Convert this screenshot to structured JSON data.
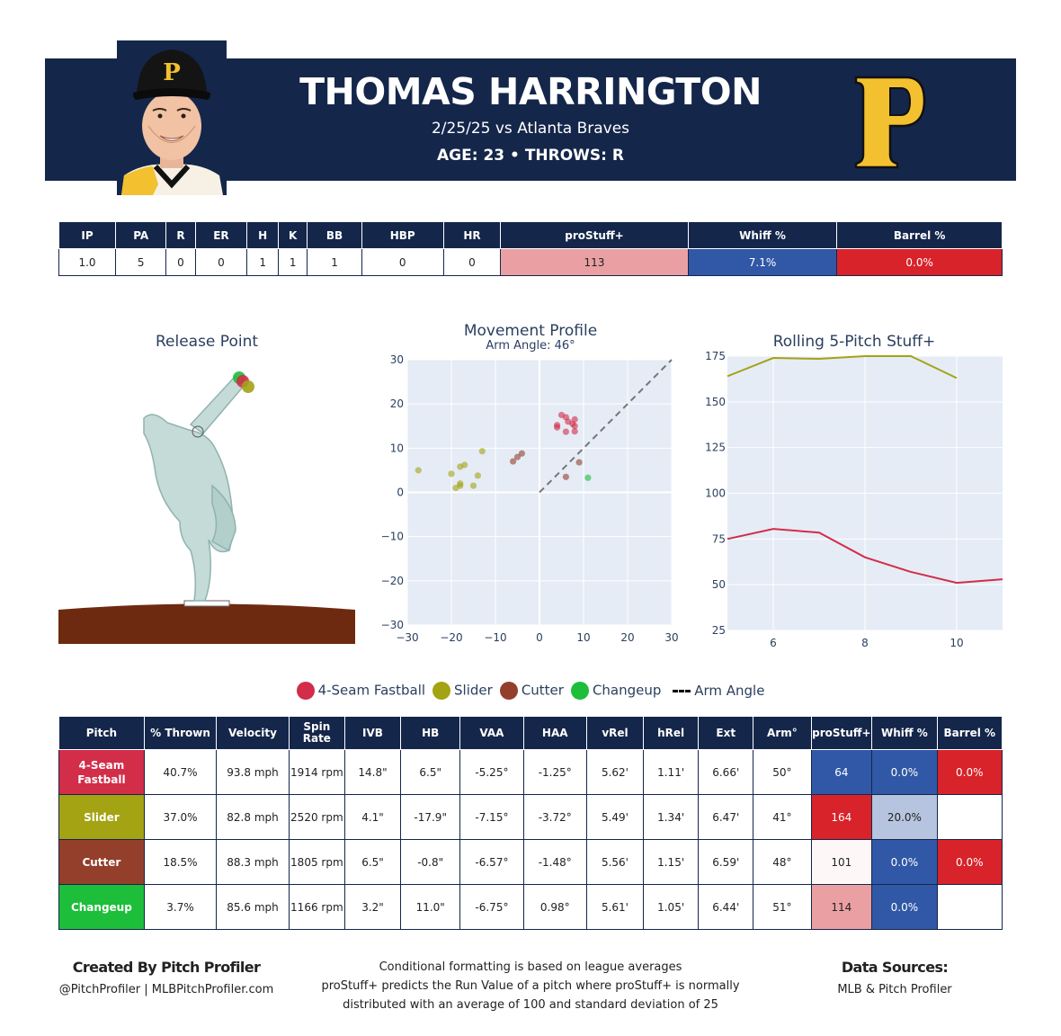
{
  "header": {
    "name": "THOMAS HARRINGTON",
    "game": "2/25/25 vs Atlanta Braves",
    "bio": "AGE: 23 • THROWS: R"
  },
  "colors": {
    "navy": "#14264a",
    "fourseam": "#d22d49",
    "slider": "#a3a313",
    "cutter": "#933f2c",
    "changeup": "#1dbe3a",
    "good_red": "#d8232a",
    "bad_blue": "#3158a6",
    "pink": "#eaa0a3",
    "light_blue": "#b7c4df",
    "near_white": "#fdf7f8"
  },
  "stat_table": {
    "headers": [
      "IP",
      "PA",
      "R",
      "ER",
      "H",
      "K",
      "BB",
      "HBP",
      "HR",
      "proStuff+",
      "Whiff %",
      "Barrel %"
    ],
    "values": [
      "1.0",
      "5",
      "0",
      "0",
      "1",
      "1",
      "1",
      "0",
      "0",
      "113",
      "7.1%",
      "0.0%"
    ],
    "cell_colors": [
      "",
      "",
      "",
      "",
      "",
      "",
      "",
      "",
      "",
      "#eaa0a3",
      "#3158a6",
      "#d8232a"
    ]
  },
  "titles": {
    "release": "Release Point",
    "movement": "Movement Profile",
    "movement_sub": "Arm Angle: 46°",
    "rolling": "Rolling 5-Pitch Stuff+"
  },
  "chart_data": [
    {
      "type": "scatter",
      "title": "Movement Profile",
      "subtitle": "Arm Angle: 46°",
      "xlim": [
        -30,
        30
      ],
      "ylim": [
        -30,
        30
      ],
      "xticks": [
        -30,
        -20,
        -10,
        0,
        10,
        20,
        30
      ],
      "yticks": [
        -30,
        -20,
        -10,
        0,
        10,
        20,
        30
      ],
      "series": [
        {
          "name": "4-Seam Fastball",
          "color": "#d22d49",
          "points": [
            [
              5,
              17.5
            ],
            [
              6,
              17
            ],
            [
              6.5,
              16
            ],
            [
              7.5,
              15.5
            ],
            [
              8,
              16.5
            ],
            [
              8,
              15
            ],
            [
              4,
              15.2
            ],
            [
              6,
              13.7
            ],
            [
              8,
              13.8
            ],
            [
              4,
              14.7
            ]
          ]
        },
        {
          "name": "Slider",
          "color": "#a3a313",
          "points": [
            [
              -27.5,
              5
            ],
            [
              -13,
              9.3
            ],
            [
              -18,
              5.8
            ],
            [
              -17,
              6.2
            ],
            [
              -20,
              4.2
            ],
            [
              -14,
              3.8
            ],
            [
              -18,
              2
            ],
            [
              -19,
              1
            ],
            [
              -18,
              1.5
            ],
            [
              -15,
              1.5
            ]
          ]
        },
        {
          "name": "Cutter",
          "color": "#933f2c",
          "points": [
            [
              -6,
              7
            ],
            [
              -5,
              8
            ],
            [
              -4,
              8.8
            ],
            [
              9,
              6.8
            ],
            [
              6,
              3.5
            ]
          ]
        },
        {
          "name": "Changeup",
          "color": "#1dbe3a",
          "points": [
            [
              11,
              3.3
            ]
          ]
        }
      ],
      "arm_angle_line": [
        [
          0,
          0
        ],
        [
          30,
          30
        ]
      ]
    },
    {
      "type": "line",
      "title": "Rolling 5-Pitch Stuff+",
      "xlim": [
        5,
        11
      ],
      "ylim": [
        25,
        175
      ],
      "xticks": [
        6,
        8,
        10
      ],
      "yticks": [
        25,
        50,
        75,
        100,
        125,
        150,
        175
      ],
      "series": [
        {
          "name": "4-Seam Fastball",
          "color": "#d22d49",
          "x": [
            5,
            6,
            7,
            8,
            9,
            10,
            11
          ],
          "y": [
            75,
            80.5,
            78.5,
            65,
            57,
            51,
            53
          ]
        },
        {
          "name": "Slider",
          "color": "#a3a313",
          "x": [
            5,
            6,
            7,
            8,
            9,
            10
          ],
          "y": [
            164,
            174,
            173.5,
            175,
            175,
            163
          ]
        }
      ]
    }
  ],
  "release_points": [
    {
      "color": "#1dbe3a",
      "x": 266,
      "y": 420
    },
    {
      "color": "#d22d49",
      "x": 270,
      "y": 424
    },
    {
      "color": "#a3a313",
      "x": 276,
      "y": 430
    }
  ],
  "legend": {
    "items": [
      {
        "label": "4-Seam Fastball",
        "color": "#d22d49"
      },
      {
        "label": "Slider",
        "color": "#a3a313"
      },
      {
        "label": "Cutter",
        "color": "#933f2c"
      },
      {
        "label": "Changeup",
        "color": "#1dbe3a"
      }
    ],
    "arm_angle_label": "Arm Angle"
  },
  "pitch_table": {
    "headers": [
      "Pitch",
      "% Thrown",
      "Velocity",
      "Spin Rate",
      "IVB",
      "HB",
      "VAA",
      "HAA",
      "vRel",
      "hRel",
      "Ext",
      "Arm°",
      "proStuff+",
      "Whiff %",
      "Barrel %"
    ],
    "rows": [
      {
        "pitch": "4-Seam Fastball",
        "color": "#d22d49",
        "cells": [
          "40.7%",
          "93.8 mph",
          "1914 rpm",
          "14.8\"",
          "6.5\"",
          "-5.25°",
          "-1.25°",
          "5.62'",
          "1.11'",
          "6.66'",
          "50°"
        ],
        "stuff": "64",
        "whiff": "0.0%",
        "barrel": "0.0%",
        "stuff_color": "#3158a6",
        "whiff_color": "#3158a6",
        "barrel_color": "#d8232a"
      },
      {
        "pitch": "Slider",
        "color": "#a3a313",
        "cells": [
          "37.0%",
          "82.8 mph",
          "2520 rpm",
          "4.1\"",
          "-17.9\"",
          "-7.15°",
          "-3.72°",
          "5.49'",
          "1.34'",
          "6.47'",
          "41°"
        ],
        "stuff": "164",
        "whiff": "20.0%",
        "barrel": "",
        "stuff_color": "#d8232a",
        "whiff_color": "#b7c4df",
        "barrel_color": "#ffffff"
      },
      {
        "pitch": "Cutter",
        "color": "#933f2c",
        "cells": [
          "18.5%",
          "88.3 mph",
          "1805 rpm",
          "6.5\"",
          "-0.8\"",
          "-6.57°",
          "-1.48°",
          "5.56'",
          "1.15'",
          "6.59'",
          "48°"
        ],
        "stuff": "101",
        "whiff": "0.0%",
        "barrel": "0.0%",
        "stuff_color": "#fdf7f8",
        "whiff_color": "#3158a6",
        "barrel_color": "#d8232a"
      },
      {
        "pitch": "Changeup",
        "color": "#1dbe3a",
        "cells": [
          "3.7%",
          "85.6 mph",
          "1166 rpm",
          "3.2\"",
          "11.0\"",
          "-6.75°",
          "0.98°",
          "5.61'",
          "1.05'",
          "6.44'",
          "51°"
        ],
        "stuff": "114",
        "whiff": "0.0%",
        "barrel": "",
        "stuff_color": "#eaa0a3",
        "whiff_color": "#3158a6",
        "barrel_color": "#ffffff"
      }
    ]
  },
  "footer": {
    "left_title": "Created By Pitch Profiler",
    "left_sub": "@PitchProfiler | MLBPitchProfiler.com",
    "note_1": "Conditional formatting is based on league averages",
    "note_2": "proStuff+ predicts the Run Value of a pitch where proStuff+ is normally",
    "note_3": "distributed with an average of 100 and standard deviation of 25",
    "right_title": "Data Sources:",
    "right_sub": "MLB & Pitch Profiler"
  }
}
